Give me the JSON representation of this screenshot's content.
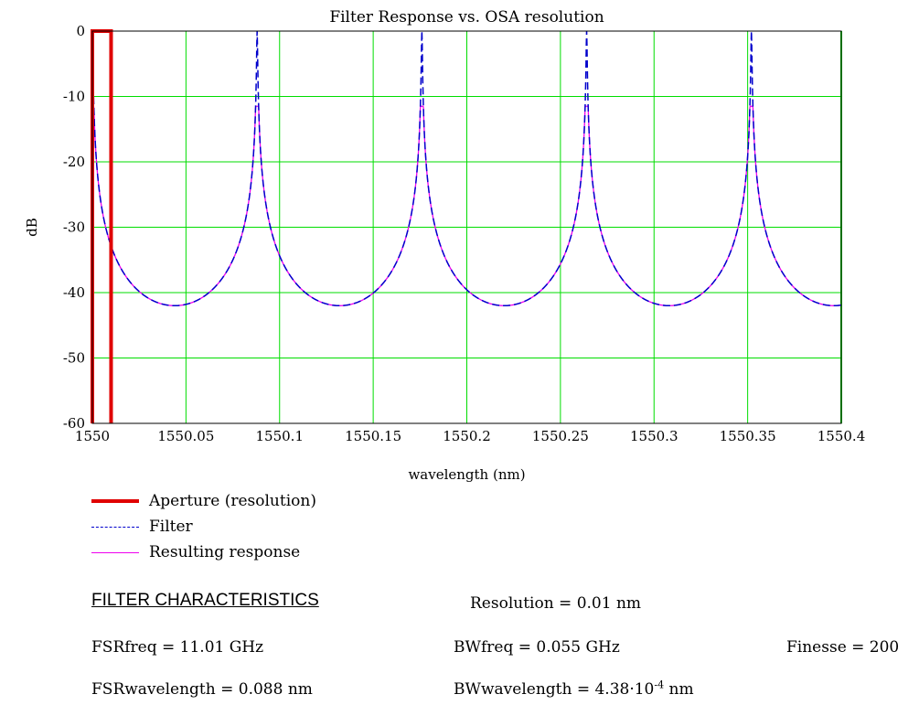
{
  "chart_data": {
    "type": "line",
    "title": "Filter Response vs. OSA resolution",
    "xlabel": "wavelength (nm)",
    "ylabel": "dB",
    "xlim": [
      1550,
      1550.4
    ],
    "ylim": [
      -60,
      0
    ],
    "xticks": [
      "1550",
      "1550.05",
      "1550.1",
      "1550.15",
      "1550.2",
      "1550.25",
      "1550.3",
      "1550.35",
      "1550.4"
    ],
    "yticks": [
      "0",
      "-10",
      "-20",
      "-30",
      "-40",
      "-50",
      "-60"
    ],
    "grid": true,
    "grid_color": "#00dd00",
    "legend_position": "bottom-left",
    "series": [
      {
        "name": "Aperture (resolution)",
        "color": "#e00000",
        "style": "solid",
        "x": [
          1550,
          1550,
          1550.01,
          1550.01
        ],
        "y": [
          -60,
          0,
          0,
          -60
        ]
      },
      {
        "name": "Filter",
        "color": "#0000cc",
        "style": "dashed",
        "peaks": [
          1550,
          1550.088,
          1550.176,
          1550.264,
          1550.352
        ],
        "peak_value": 0,
        "minimum_value": -42
      },
      {
        "name": "Resulting response",
        "color": "#ee00ee",
        "style": "solid",
        "peaks": [
          1550,
          1550.088,
          1550.176,
          1550.264,
          1550.352
        ],
        "peak_value": -11.5,
        "minimum_value": -42
      }
    ]
  },
  "characteristics": {
    "heading": "FILTER CHARACTERISTICS",
    "resolution": "Resolution = 0.01 nm",
    "fsr_freq": "FSRfreq = 11.01 GHz",
    "bw_freq": "BWfreq = 0.055 GHz",
    "finesse": "Finesse = 200",
    "fsr_wavelength": "FSRwavelength = 0.088 nm",
    "bw_wavelength_prefix": "BWwavelength = 4.38·10",
    "bw_wavelength_exp": "-4",
    "bw_wavelength_suffix": " nm"
  }
}
